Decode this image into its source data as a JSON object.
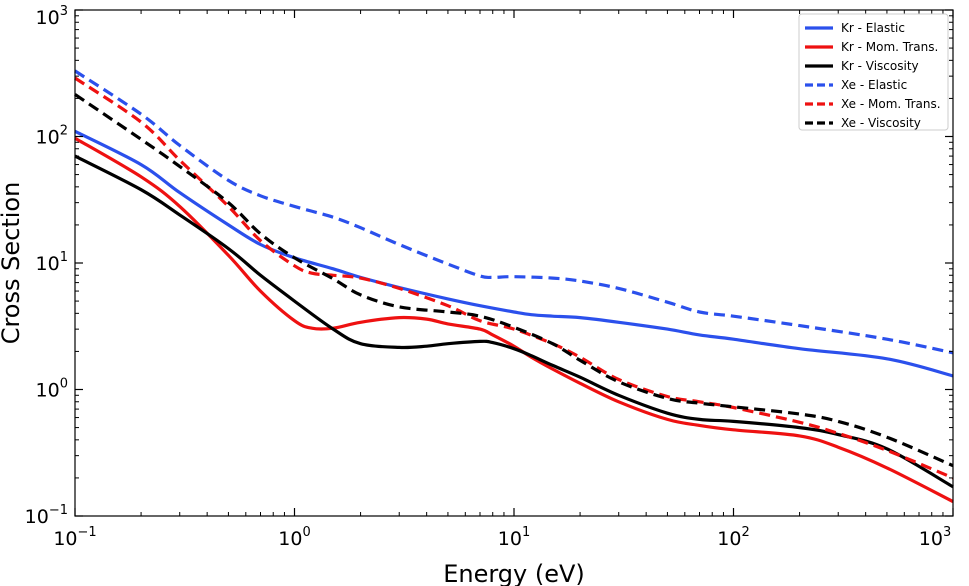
{
  "chart_data": {
    "type": "line",
    "title": "",
    "xlabel": "Energy (eV)",
    "ylabel": "Cross Section",
    "xscale": "log",
    "yscale": "log",
    "xlim": [
      0.1,
      1000
    ],
    "ylim": [
      0.1,
      1000
    ],
    "grid": false,
    "legend_position": "top-right",
    "x_ticks": [
      {
        "base": "10",
        "exp": "−1",
        "value": 0.1
      },
      {
        "base": "10",
        "exp": "0",
        "value": 1
      },
      {
        "base": "10",
        "exp": "1",
        "value": 10
      },
      {
        "base": "10",
        "exp": "2",
        "value": 100
      },
      {
        "base": "10",
        "exp": "3",
        "value": 1000
      }
    ],
    "y_ticks": [
      {
        "base": "10",
        "exp": "−1",
        "value": 0.1
      },
      {
        "base": "10",
        "exp": "0",
        "value": 1
      },
      {
        "base": "10",
        "exp": "1",
        "value": 10
      },
      {
        "base": "10",
        "exp": "2",
        "value": 100
      },
      {
        "base": "10",
        "exp": "3",
        "value": 1000
      }
    ],
    "series": [
      {
        "name": "Kr - Elastic",
        "color": "#2b50ec",
        "dash": "solid",
        "x": [
          0.1,
          0.2,
          0.3,
          0.5,
          0.7,
          1,
          1.5,
          2,
          3,
          5,
          7,
          10,
          12,
          15,
          20,
          30,
          50,
          70,
          100,
          200,
          500,
          1000
        ],
        "y": [
          110,
          60,
          36,
          20,
          14,
          11,
          9,
          7.7,
          6.4,
          5.2,
          4.6,
          4.1,
          3.9,
          3.8,
          3.7,
          3.4,
          3.0,
          2.7,
          2.5,
          2.1,
          1.75,
          1.28
        ]
      },
      {
        "name": "Kr - Mom. Trans.",
        "color": "#ee1111",
        "dash": "solid",
        "x": [
          0.1,
          0.2,
          0.3,
          0.5,
          0.7,
          1,
          1.2,
          1.5,
          2,
          3,
          4,
          5,
          7,
          8,
          10,
          12,
          15,
          20,
          30,
          50,
          70,
          100,
          200,
          300,
          500,
          1000
        ],
        "y": [
          97,
          48,
          28,
          11.5,
          6,
          3.5,
          3.05,
          3.05,
          3.4,
          3.7,
          3.6,
          3.3,
          3.0,
          2.7,
          2.2,
          1.8,
          1.45,
          1.12,
          0.8,
          0.58,
          0.52,
          0.48,
          0.43,
          0.35,
          0.24,
          0.13
        ]
      },
      {
        "name": "Kr - Viscosity",
        "color": "#000000",
        "dash": "solid",
        "x": [
          0.1,
          0.2,
          0.3,
          0.5,
          0.7,
          1,
          1.5,
          2,
          3,
          4,
          5,
          7,
          8,
          10,
          12,
          15,
          20,
          30,
          50,
          70,
          100,
          200,
          300,
          500,
          1000
        ],
        "y": [
          70,
          38,
          24,
          13,
          8,
          5,
          3.0,
          2.3,
          2.15,
          2.2,
          2.3,
          2.4,
          2.35,
          2.1,
          1.85,
          1.55,
          1.25,
          0.9,
          0.65,
          0.58,
          0.56,
          0.5,
          0.44,
          0.34,
          0.17
        ]
      },
      {
        "name": "Xe - Elastic",
        "color": "#2b50ec",
        "dash": "dashed",
        "x": [
          0.1,
          0.2,
          0.3,
          0.5,
          0.7,
          1,
          1.5,
          2,
          3,
          5,
          7,
          8,
          10,
          15,
          20,
          30,
          50,
          70,
          100,
          200,
          500,
          1000
        ],
        "y": [
          330,
          150,
          85,
          45,
          34,
          28,
          23,
          19,
          14,
          9.8,
          7.9,
          7.7,
          7.8,
          7.6,
          7.2,
          6.3,
          4.9,
          4.1,
          3.8,
          3.2,
          2.5,
          1.95
        ]
      },
      {
        "name": "Xe - Mom. Trans.",
        "color": "#ee1111",
        "dash": "dashed",
        "x": [
          0.1,
          0.2,
          0.3,
          0.5,
          0.7,
          1,
          1.2,
          1.5,
          2,
          3,
          5,
          7,
          10,
          15,
          20,
          30,
          50,
          70,
          100,
          200,
          300,
          500,
          1000
        ],
        "y": [
          290,
          130,
          65,
          28,
          15,
          9.5,
          8.3,
          8.0,
          7.6,
          6.3,
          4.6,
          3.5,
          3.0,
          2.3,
          1.8,
          1.2,
          0.88,
          0.8,
          0.72,
          0.55,
          0.45,
          0.33,
          0.2
        ]
      },
      {
        "name": "Xe - Viscosity",
        "color": "#000000",
        "dash": "dashed",
        "x": [
          0.1,
          0.2,
          0.3,
          0.5,
          0.7,
          1,
          1.5,
          2,
          3,
          5,
          7,
          10,
          15,
          20,
          30,
          50,
          70,
          100,
          200,
          300,
          500,
          1000
        ],
        "y": [
          215,
          95,
          58,
          30,
          17,
          11,
          7.5,
          5.6,
          4.5,
          4.1,
          3.8,
          3.1,
          2.3,
          1.7,
          1.15,
          0.85,
          0.78,
          0.73,
          0.64,
          0.56,
          0.42,
          0.25
        ]
      }
    ]
  }
}
